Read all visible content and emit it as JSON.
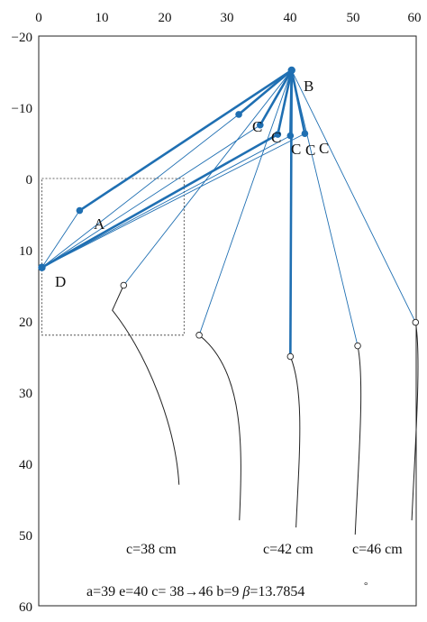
{
  "axes": {
    "x_ticks": [
      "0",
      "10",
      "20",
      "30",
      "40",
      "50",
      "60"
    ],
    "y_ticks": [
      "−20",
      "−10",
      "0",
      "10",
      "20",
      "30",
      "40",
      "50",
      "60"
    ],
    "xlim": [
      0,
      60
    ],
    "ylim": [
      -20,
      60
    ],
    "y_reversed": true,
    "x_axis_position": "top"
  },
  "colors": {
    "link": "#1f6fb2",
    "curve": "#222222",
    "axis": "#222222"
  },
  "labels": {
    "A": "A",
    "B": "B",
    "D": "D",
    "C1": "C",
    "C2": "C",
    "C3": "C",
    "C4": "C",
    "C5": "C"
  },
  "captions": {
    "c38": "c=38 cm",
    "c42": "c=42 cm",
    "c46": "c=46 cm",
    "params_main": "a=39 e=40 c= 38",
    "params_arrow": "→",
    "params_tail": "46 b=9 ",
    "params_beta": "β",
    "params_beta_val": "=13.7854",
    "params_degree": "°"
  },
  "chart_data": {
    "type": "diagram",
    "points": {
      "B": [
        40.2,
        -15.2
      ],
      "D": [
        0.5,
        12.5
      ],
      "A": [
        6.5,
        4.5
      ],
      "P1": [
        31.8,
        -9.0
      ],
      "P2": [
        35.2,
        -7.5
      ],
      "P3": [
        38.0,
        -6.2
      ],
      "P4": [
        40.0,
        -6.0
      ],
      "P5": [
        42.3,
        -6.3
      ]
    },
    "thick_links": [
      [
        "B",
        "A"
      ],
      [
        "B",
        "P1"
      ],
      [
        "B",
        "P2"
      ],
      [
        "B",
        "P3"
      ],
      [
        "B",
        "P4"
      ],
      [
        "B",
        "P5"
      ],
      [
        "D",
        "P3"
      ]
    ],
    "thin_links_from_D": [
      "P1",
      "P2",
      "P4",
      "P5"
    ],
    "feet": [
      {
        "name": "foot-1",
        "top": [
          13.5,
          15.0
        ],
        "bottom_tip": [
          22.3,
          43.0
        ]
      },
      {
        "name": "foot-2",
        "top": [
          25.5,
          22.0
        ],
        "bottom_tip": [
          31.9,
          48.0
        ]
      },
      {
        "name": "foot-3",
        "top": [
          40.0,
          25.0
        ],
        "bottom_tip": [
          40.9,
          49.0
        ]
      },
      {
        "name": "foot-4",
        "top": [
          50.7,
          23.5
        ],
        "bottom_tip": [
          50.3,
          50.0
        ]
      },
      {
        "name": "foot-5",
        "top": [
          59.9,
          20.2
        ],
        "bottom_tip": [
          59.3,
          48.0
        ]
      }
    ],
    "thick_vertical": [
      "B",
      [
        40.0,
        25.0
      ]
    ],
    "dotted_box": {
      "x": [
        0.5,
        23.1
      ],
      "y": [
        0.0,
        22.0
      ]
    }
  }
}
